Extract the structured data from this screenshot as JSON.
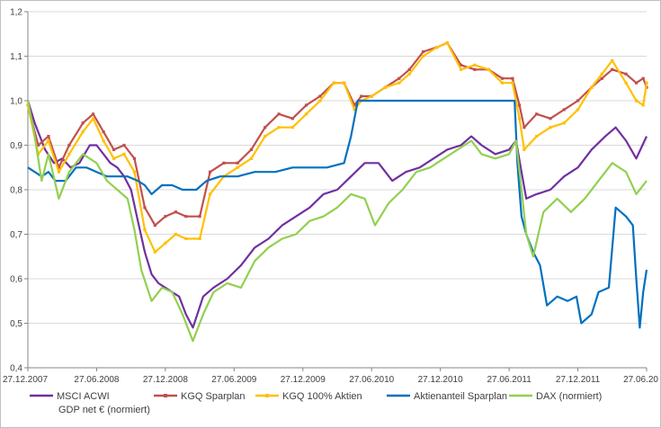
{
  "chart_data": {
    "type": "line",
    "title": "",
    "xlabel": "",
    "ylabel": "",
    "ylim": [
      0.4,
      1.2
    ],
    "yticks": [
      "0,4",
      "0,5",
      "0,6",
      "0,7",
      "0,8",
      "0,9",
      "1,0",
      "1,1",
      "1,2"
    ],
    "xticks": [
      "27.12.2007",
      "27.06.2008",
      "27.12.2008",
      "27.06.2009",
      "27.12.2009",
      "27.06.2010",
      "27.12.2010",
      "27.06.2011",
      "27.12.2011",
      "27.06.20"
    ],
    "xlim": [
      0,
      9
    ],
    "grid": "horizontal",
    "legend_position": "bottom",
    "series": [
      {
        "name": "MSCI ACWI GDP net € (normiert)",
        "name_lines": [
          "MSCI ACWI",
          "GDP net € (normiert)"
        ],
        "color": "#7030A0",
        "points": [
          [
            0.0,
            1.0
          ],
          [
            0.1,
            0.95
          ],
          [
            0.25,
            0.89
          ],
          [
            0.38,
            0.86
          ],
          [
            0.5,
            0.87
          ],
          [
            0.62,
            0.85
          ],
          [
            0.75,
            0.86
          ],
          [
            0.9,
            0.9
          ],
          [
            1.0,
            0.9
          ],
          [
            1.1,
            0.88
          ],
          [
            1.2,
            0.86
          ],
          [
            1.3,
            0.85
          ],
          [
            1.4,
            0.83
          ],
          [
            1.5,
            0.8
          ],
          [
            1.6,
            0.73
          ],
          [
            1.7,
            0.66
          ],
          [
            1.8,
            0.61
          ],
          [
            1.9,
            0.59
          ],
          [
            2.0,
            0.58
          ],
          [
            2.1,
            0.57
          ],
          [
            2.2,
            0.56
          ],
          [
            2.3,
            0.52
          ],
          [
            2.4,
            0.49
          ],
          [
            2.55,
            0.56
          ],
          [
            2.7,
            0.58
          ],
          [
            2.9,
            0.6
          ],
          [
            3.1,
            0.63
          ],
          [
            3.3,
            0.67
          ],
          [
            3.5,
            0.69
          ],
          [
            3.7,
            0.72
          ],
          [
            3.9,
            0.74
          ],
          [
            4.1,
            0.76
          ],
          [
            4.3,
            0.79
          ],
          [
            4.5,
            0.8
          ],
          [
            4.7,
            0.83
          ],
          [
            4.9,
            0.86
          ],
          [
            5.1,
            0.86
          ],
          [
            5.3,
            0.82
          ],
          [
            5.5,
            0.84
          ],
          [
            5.7,
            0.85
          ],
          [
            5.9,
            0.87
          ],
          [
            6.1,
            0.89
          ],
          [
            6.3,
            0.9
          ],
          [
            6.45,
            0.92
          ],
          [
            6.6,
            0.9
          ],
          [
            6.8,
            0.88
          ],
          [
            7.0,
            0.89
          ],
          [
            7.1,
            0.91
          ],
          [
            7.18,
            0.84
          ],
          [
            7.25,
            0.78
          ],
          [
            7.4,
            0.79
          ],
          [
            7.6,
            0.8
          ],
          [
            7.8,
            0.83
          ],
          [
            8.0,
            0.85
          ],
          [
            8.2,
            0.89
          ],
          [
            8.4,
            0.92
          ],
          [
            8.55,
            0.94
          ],
          [
            8.7,
            0.91
          ],
          [
            8.85,
            0.87
          ],
          [
            9.0,
            0.92
          ]
        ]
      },
      {
        "name": "KGQ Sparplan",
        "name_lines": [
          "KGQ Sparplan"
        ],
        "color": "#C0504D",
        "points": [
          [
            0.0,
            0.99
          ],
          [
            0.15,
            0.9
          ],
          [
            0.3,
            0.92
          ],
          [
            0.45,
            0.85
          ],
          [
            0.6,
            0.9
          ],
          [
            0.8,
            0.95
          ],
          [
            0.95,
            0.97
          ],
          [
            1.1,
            0.93
          ],
          [
            1.25,
            0.89
          ],
          [
            1.4,
            0.9
          ],
          [
            1.55,
            0.87
          ],
          [
            1.7,
            0.76
          ],
          [
            1.85,
            0.72
          ],
          [
            2.0,
            0.74
          ],
          [
            2.15,
            0.75
          ],
          [
            2.3,
            0.74
          ],
          [
            2.5,
            0.74
          ],
          [
            2.65,
            0.84
          ],
          [
            2.85,
            0.86
          ],
          [
            3.05,
            0.86
          ],
          [
            3.25,
            0.89
          ],
          [
            3.45,
            0.94
          ],
          [
            3.65,
            0.97
          ],
          [
            3.85,
            0.96
          ],
          [
            4.05,
            0.99
          ],
          [
            4.25,
            1.01
          ],
          [
            4.45,
            1.04
          ],
          [
            4.6,
            1.04
          ],
          [
            4.75,
            0.99
          ],
          [
            4.85,
            1.01
          ],
          [
            5.0,
            1.01
          ],
          [
            5.2,
            1.03
          ],
          [
            5.4,
            1.05
          ],
          [
            5.55,
            1.07
          ],
          [
            5.75,
            1.11
          ],
          [
            5.95,
            1.12
          ],
          [
            6.1,
            1.13
          ],
          [
            6.3,
            1.08
          ],
          [
            6.5,
            1.07
          ],
          [
            6.7,
            1.07
          ],
          [
            6.9,
            1.05
          ],
          [
            7.05,
            1.05
          ],
          [
            7.15,
            0.99
          ],
          [
            7.22,
            0.94
          ],
          [
            7.4,
            0.97
          ],
          [
            7.6,
            0.96
          ],
          [
            7.8,
            0.98
          ],
          [
            8.0,
            1.0
          ],
          [
            8.2,
            1.03
          ],
          [
            8.35,
            1.05
          ],
          [
            8.5,
            1.07
          ],
          [
            8.7,
            1.06
          ],
          [
            8.85,
            1.04
          ],
          [
            8.95,
            1.05
          ],
          [
            9.0,
            1.03
          ]
        ]
      },
      {
        "name": "KGQ 100% Aktien",
        "name_lines": [
          "KGQ 100% Aktien"
        ],
        "color": "#FFC000",
        "points": [
          [
            0.0,
            0.99
          ],
          [
            0.15,
            0.88
          ],
          [
            0.3,
            0.91
          ],
          [
            0.45,
            0.84
          ],
          [
            0.6,
            0.88
          ],
          [
            0.8,
            0.93
          ],
          [
            0.95,
            0.96
          ],
          [
            1.1,
            0.91
          ],
          [
            1.25,
            0.87
          ],
          [
            1.4,
            0.88
          ],
          [
            1.55,
            0.84
          ],
          [
            1.7,
            0.71
          ],
          [
            1.85,
            0.66
          ],
          [
            2.0,
            0.68
          ],
          [
            2.15,
            0.7
          ],
          [
            2.3,
            0.69
          ],
          [
            2.5,
            0.69
          ],
          [
            2.65,
            0.79
          ],
          [
            2.85,
            0.83
          ],
          [
            3.05,
            0.85
          ],
          [
            3.25,
            0.87
          ],
          [
            3.45,
            0.92
          ],
          [
            3.65,
            0.94
          ],
          [
            3.85,
            0.94
          ],
          [
            4.05,
            0.97
          ],
          [
            4.25,
            1.0
          ],
          [
            4.45,
            1.04
          ],
          [
            4.6,
            1.04
          ],
          [
            4.75,
            0.98
          ],
          [
            4.85,
            1.0
          ],
          [
            5.0,
            1.01
          ],
          [
            5.2,
            1.03
          ],
          [
            5.4,
            1.04
          ],
          [
            5.55,
            1.06
          ],
          [
            5.75,
            1.1
          ],
          [
            5.95,
            1.12
          ],
          [
            6.1,
            1.13
          ],
          [
            6.3,
            1.07
          ],
          [
            6.5,
            1.08
          ],
          [
            6.7,
            1.07
          ],
          [
            6.9,
            1.04
          ],
          [
            7.05,
            1.04
          ],
          [
            7.15,
            0.96
          ],
          [
            7.22,
            0.89
          ],
          [
            7.4,
            0.92
          ],
          [
            7.6,
            0.94
          ],
          [
            7.8,
            0.95
          ],
          [
            8.0,
            0.98
          ],
          [
            8.2,
            1.03
          ],
          [
            8.35,
            1.06
          ],
          [
            8.5,
            1.09
          ],
          [
            8.7,
            1.04
          ],
          [
            8.85,
            1.0
          ],
          [
            8.95,
            0.99
          ],
          [
            9.0,
            1.04
          ]
        ]
      },
      {
        "name": "Aktienanteil Sparplan",
        "name_lines": [
          "Aktienanteil Sparplan"
        ],
        "color": "#0070C0",
        "points": [
          [
            0.0,
            0.85
          ],
          [
            0.1,
            0.84
          ],
          [
            0.2,
            0.83
          ],
          [
            0.3,
            0.84
          ],
          [
            0.4,
            0.82
          ],
          [
            0.55,
            0.82
          ],
          [
            0.7,
            0.85
          ],
          [
            0.85,
            0.85
          ],
          [
            1.0,
            0.84
          ],
          [
            1.15,
            0.83
          ],
          [
            1.3,
            0.83
          ],
          [
            1.45,
            0.83
          ],
          [
            1.6,
            0.82
          ],
          [
            1.7,
            0.81
          ],
          [
            1.8,
            0.79
          ],
          [
            1.95,
            0.81
          ],
          [
            2.1,
            0.81
          ],
          [
            2.25,
            0.8
          ],
          [
            2.45,
            0.8
          ],
          [
            2.6,
            0.82
          ],
          [
            2.8,
            0.83
          ],
          [
            3.05,
            0.83
          ],
          [
            3.3,
            0.84
          ],
          [
            3.6,
            0.84
          ],
          [
            3.85,
            0.85
          ],
          [
            4.1,
            0.85
          ],
          [
            4.35,
            0.85
          ],
          [
            4.6,
            0.86
          ],
          [
            4.7,
            0.92
          ],
          [
            4.8,
            1.0
          ],
          [
            5.2,
            1.0
          ],
          [
            5.6,
            1.0
          ],
          [
            6.0,
            1.0
          ],
          [
            6.4,
            1.0
          ],
          [
            6.8,
            1.0
          ],
          [
            7.08,
            1.0
          ],
          [
            7.12,
            0.86
          ],
          [
            7.18,
            0.74
          ],
          [
            7.25,
            0.7
          ],
          [
            7.35,
            0.66
          ],
          [
            7.45,
            0.63
          ],
          [
            7.55,
            0.54
          ],
          [
            7.7,
            0.56
          ],
          [
            7.85,
            0.55
          ],
          [
            7.98,
            0.56
          ],
          [
            8.05,
            0.5
          ],
          [
            8.2,
            0.52
          ],
          [
            8.3,
            0.57
          ],
          [
            8.45,
            0.58
          ],
          [
            8.55,
            0.76
          ],
          [
            8.7,
            0.74
          ],
          [
            8.8,
            0.72
          ],
          [
            8.85,
            0.6
          ],
          [
            8.9,
            0.49
          ],
          [
            8.95,
            0.57
          ],
          [
            9.0,
            0.62
          ]
        ]
      },
      {
        "name": "DAX (normiert)",
        "name_lines": [
          "DAX (normiert)"
        ],
        "color": "#92D050",
        "points": [
          [
            0.0,
            1.0
          ],
          [
            0.1,
            0.92
          ],
          [
            0.2,
            0.82
          ],
          [
            0.3,
            0.88
          ],
          [
            0.45,
            0.78
          ],
          [
            0.6,
            0.84
          ],
          [
            0.8,
            0.88
          ],
          [
            1.0,
            0.86
          ],
          [
            1.15,
            0.82
          ],
          [
            1.3,
            0.8
          ],
          [
            1.45,
            0.78
          ],
          [
            1.55,
            0.71
          ],
          [
            1.65,
            0.62
          ],
          [
            1.8,
            0.55
          ],
          [
            1.95,
            0.58
          ],
          [
            2.1,
            0.57
          ],
          [
            2.25,
            0.52
          ],
          [
            2.4,
            0.46
          ],
          [
            2.55,
            0.52
          ],
          [
            2.7,
            0.57
          ],
          [
            2.9,
            0.59
          ],
          [
            3.1,
            0.58
          ],
          [
            3.3,
            0.64
          ],
          [
            3.5,
            0.67
          ],
          [
            3.7,
            0.69
          ],
          [
            3.9,
            0.7
          ],
          [
            4.1,
            0.73
          ],
          [
            4.3,
            0.74
          ],
          [
            4.5,
            0.76
          ],
          [
            4.7,
            0.79
          ],
          [
            4.9,
            0.78
          ],
          [
            5.05,
            0.72
          ],
          [
            5.25,
            0.77
          ],
          [
            5.45,
            0.8
          ],
          [
            5.65,
            0.84
          ],
          [
            5.85,
            0.85
          ],
          [
            6.05,
            0.87
          ],
          [
            6.25,
            0.89
          ],
          [
            6.45,
            0.91
          ],
          [
            6.6,
            0.88
          ],
          [
            6.8,
            0.87
          ],
          [
            7.0,
            0.88
          ],
          [
            7.1,
            0.91
          ],
          [
            7.18,
            0.8
          ],
          [
            7.25,
            0.7
          ],
          [
            7.35,
            0.65
          ],
          [
            7.5,
            0.75
          ],
          [
            7.7,
            0.78
          ],
          [
            7.9,
            0.75
          ],
          [
            8.1,
            0.78
          ],
          [
            8.3,
            0.82
          ],
          [
            8.5,
            0.86
          ],
          [
            8.7,
            0.84
          ],
          [
            8.85,
            0.79
          ],
          [
            9.0,
            0.82
          ]
        ]
      }
    ]
  }
}
